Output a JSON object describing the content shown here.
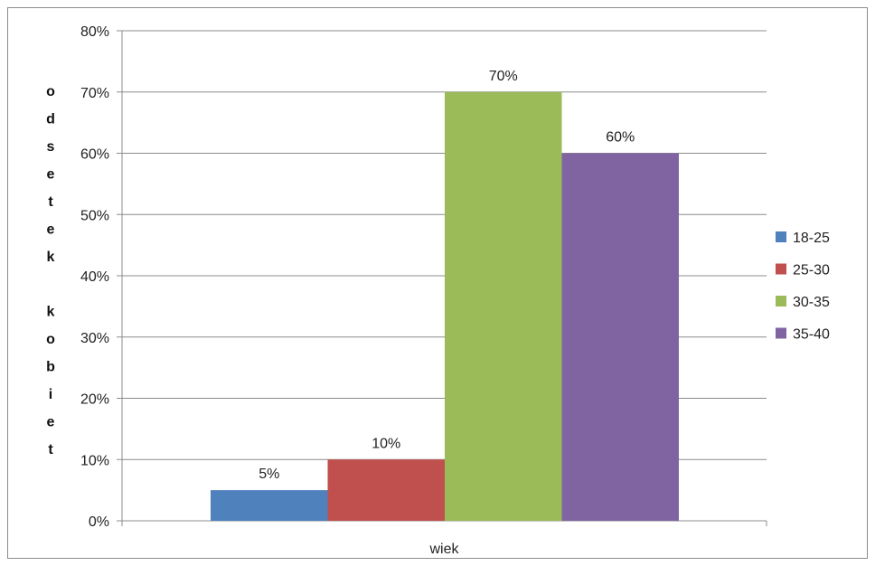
{
  "chart_data": {
    "type": "bar",
    "categories": [
      "wiek"
    ],
    "series": [
      {
        "name": "18-25",
        "values": [
          5
        ],
        "label": "5%",
        "color": "#4f81bd"
      },
      {
        "name": "25-30",
        "values": [
          10
        ],
        "label": "10%",
        "color": "#c0504d"
      },
      {
        "name": "30-35",
        "values": [
          70
        ],
        "label": "70%",
        "color": "#9bbb59"
      },
      {
        "name": "35-40",
        "values": [
          60
        ],
        "label": "60%",
        "color": "#8064a2"
      }
    ],
    "xlabel": "wiek",
    "ylabel": "odsetek kobiet",
    "ylim": [
      0,
      80
    ],
    "yticks": [
      0,
      10,
      20,
      30,
      40,
      50,
      60,
      70,
      80
    ],
    "ytick_labels": [
      "0%",
      "10%",
      "20%",
      "30%",
      "40%",
      "50%",
      "60%",
      "70%",
      "80%"
    ],
    "grid": true,
    "legend_position": "right"
  }
}
